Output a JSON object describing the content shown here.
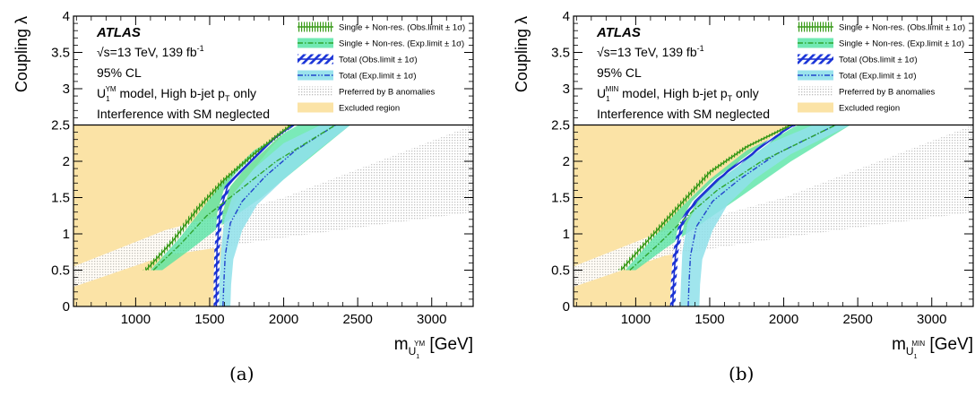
{
  "chart_data": [
    {
      "type": "area",
      "label": "ATLAS",
      "energy_text": "√s=13 TeV, 139 fb",
      "lumi_sup": "-1",
      "cl_text": "95% CL",
      "model_pre": "U",
      "model_sub": "1",
      "model_sup": "YM",
      "model_post": " model, High b-jet p",
      "model_post_sub": "T",
      "model_tail": " only",
      "interference_text": "Interference with SM neglected",
      "ylabel": "Coupling λ",
      "xlabel_pre": "m",
      "xlabel_sub": "U",
      "xlabel_subsub": "1",
      "xlabel_sup": "YM",
      "xlabel_unit": " [GeV]",
      "caption": "(a)",
      "xlim": [
        580,
        3280
      ],
      "ylim": [
        0,
        4
      ],
      "xticks": [
        1000,
        1500,
        2000,
        2500,
        3000
      ],
      "yticks": [
        0,
        0.5,
        1,
        1.5,
        2,
        2.5,
        3,
        3.5,
        4
      ],
      "xtick_labels": [
        "1000",
        "1500",
        "2000",
        "2500",
        "3000"
      ],
      "ytick_labels": [
        "0",
        "0.5",
        "1",
        "1.5",
        "2",
        "2.5",
        "3",
        "3.5",
        "4"
      ],
      "legend": [
        "Single + Non-res. (Obs.limit ± 1σ)",
        "Single + Non-res. (Exp.limit ± 1σ)",
        "Total (Obs.limit ± 1σ)",
        "Total (Exp.limit ± 1σ)",
        "Preferred by B anomalies",
        "Excluded region"
      ],
      "colors": {
        "excluded": "#fbe3a6",
        "anomalies": "#c8c8c8",
        "single_obs": "#3a9a1a",
        "single_band": "#4ee3a0",
        "single_exp": "#2fa52f",
        "total_band": "#8fe0ea",
        "total_obs": "#1a2fd0",
        "total_exp": "#2244cc"
      },
      "series": {
        "excluded": {
          "x": [
            580,
            1550,
            1555,
            1580,
            1640,
            1780,
            1920,
            2060
          ],
          "y": [
            0,
            0,
            0.3,
            0.8,
            1.3,
            1.85,
            2.2,
            2.5
          ]
        },
        "anomalies": {
          "x": [
            580,
            1200,
            2000,
            3280,
            3280,
            2000,
            1200,
            580
          ],
          "y": [
            0.55,
            1.05,
            1.5,
            2.5,
            1.3,
            0.95,
            0.7,
            0.27
          ]
        },
        "single_obs": {
          "x": [
            1070,
            1250,
            1420,
            1600,
            1800,
            2050
          ],
          "y": [
            0.5,
            0.9,
            1.35,
            1.75,
            2.1,
            2.5
          ]
        },
        "single_exp": {
          "x": [
            1120,
            1300,
            1480,
            1700,
            1950,
            2350
          ],
          "y": [
            0.5,
            0.85,
            1.25,
            1.6,
            2.0,
            2.5
          ]
        },
        "single_band_upper": {
          "x": [
            1100,
            1300,
            1450,
            1600,
            1800,
            2100
          ],
          "y": [
            0.5,
            0.95,
            1.35,
            1.75,
            2.15,
            2.5
          ]
        },
        "single_band_lower": {
          "x": [
            1180,
            1380,
            1600,
            1850,
            2150,
            2450
          ],
          "y": [
            0.5,
            0.8,
            1.15,
            1.5,
            2.0,
            2.5
          ]
        },
        "total_obs": {
          "x": [
            1545,
            1545,
            1550,
            1570,
            1620,
            1700,
            1800,
            1930,
            2060
          ],
          "y": [
            0,
            0.3,
            0.8,
            1.3,
            1.65,
            1.85,
            2.05,
            2.3,
            2.5
          ]
        },
        "total_exp": {
          "x": [
            1590,
            1595,
            1605,
            1640,
            1720,
            1880,
            2080,
            2350
          ],
          "y": [
            0,
            0.3,
            0.7,
            1.15,
            1.45,
            1.8,
            2.15,
            2.5
          ]
        },
        "total_band_upper": {
          "x": [
            1565,
            1565,
            1575,
            1600,
            1660,
            1800,
            2000,
            2250
          ],
          "y": [
            0,
            0.3,
            0.75,
            1.2,
            1.55,
            1.9,
            2.25,
            2.5
          ]
        },
        "total_band_lower": {
          "x": [
            1640,
            1645,
            1660,
            1720,
            1820,
            2000,
            2200,
            2450
          ],
          "y": [
            0,
            0.3,
            0.65,
            1.05,
            1.4,
            1.75,
            2.1,
            2.5
          ]
        }
      }
    },
    {
      "type": "area",
      "label": "ATLAS",
      "energy_text": "√s=13 TeV, 139 fb",
      "lumi_sup": "-1",
      "cl_text": "95% CL",
      "model_pre": "U",
      "model_sub": "1",
      "model_sup": "MIN",
      "model_post": " model, High b-jet p",
      "model_post_sub": "T",
      "model_tail": " only",
      "interference_text": "Interference with SM neglected",
      "ylabel": "Coupling λ",
      "xlabel_pre": "m",
      "xlabel_sub": "U",
      "xlabel_subsub": "1",
      "xlabel_sup": "MIN",
      "xlabel_unit": " [GeV]",
      "caption": "(b)",
      "xlim": [
        580,
        3280
      ],
      "ylim": [
        0,
        4
      ],
      "xticks": [
        1000,
        1500,
        2000,
        2500,
        3000
      ],
      "yticks": [
        0,
        0.5,
        1,
        1.5,
        2,
        2.5,
        3,
        3.5,
        4
      ],
      "xtick_labels": [
        "1000",
        "1500",
        "2000",
        "2500",
        "3000"
      ],
      "ytick_labels": [
        "0",
        "0.5",
        "1",
        "1.5",
        "2",
        "2.5",
        "3",
        "3.5",
        "4"
      ],
      "legend": [
        "Single + Non-res. (Obs.limit ± 1σ)",
        "Single + Non-res. (Exp.limit ± 1σ)",
        "Total (Obs.limit ± 1σ)",
        "Total (Exp.limit ± 1σ)",
        "Preferred by B anomalies",
        "Excluded region"
      ],
      "colors": {
        "excluded": "#fbe3a6",
        "anomalies": "#c8c8c8",
        "single_obs": "#3a9a1a",
        "single_band": "#4ee3a0",
        "single_exp": "#2fa52f",
        "total_band": "#8fe0ea",
        "total_obs": "#1a2fd0",
        "total_exp": "#2244cc"
      },
      "series": {
        "excluded": {
          "x": [
            580,
            1250,
            1255,
            1290,
            1360,
            1500,
            1700,
            1900,
            2050
          ],
          "y": [
            0,
            0,
            0.3,
            0.8,
            1.2,
            1.55,
            1.95,
            2.3,
            2.5
          ]
        },
        "anomalies": {
          "x": [
            580,
            1200,
            2000,
            3280,
            3280,
            2000,
            1200,
            580
          ],
          "y": [
            0.55,
            1.05,
            1.5,
            2.5,
            1.3,
            0.95,
            0.7,
            0.27
          ]
        },
        "single_obs": {
          "x": [
            900,
            1100,
            1300,
            1500,
            1750,
            2050
          ],
          "y": [
            0.5,
            0.95,
            1.4,
            1.85,
            2.2,
            2.5
          ]
        },
        "single_exp": {
          "x": [
            960,
            1150,
            1350,
            1550,
            1850,
            2350
          ],
          "y": [
            0.5,
            0.85,
            1.25,
            1.6,
            2.0,
            2.5
          ]
        },
        "single_band_upper": {
          "x": [
            930,
            1120,
            1300,
            1500,
            1750,
            2100
          ],
          "y": [
            0.5,
            0.95,
            1.35,
            1.75,
            2.15,
            2.5
          ]
        },
        "single_band_lower": {
          "x": [
            1000,
            1200,
            1450,
            1700,
            2050,
            2450
          ],
          "y": [
            0.5,
            0.8,
            1.15,
            1.5,
            2.0,
            2.5
          ]
        },
        "total_obs": {
          "x": [
            1250,
            1255,
            1270,
            1310,
            1400,
            1550,
            1750,
            1950,
            2070
          ],
          "y": [
            0,
            0.3,
            0.75,
            1.15,
            1.45,
            1.75,
            2.05,
            2.35,
            2.5
          ]
        },
        "total_exp": {
          "x": [
            1355,
            1360,
            1370,
            1410,
            1520,
            1700,
            1950,
            2350
          ],
          "y": [
            0,
            0.3,
            0.7,
            1.1,
            1.45,
            1.75,
            2.1,
            2.5
          ]
        },
        "total_band_upper": {
          "x": [
            1300,
            1305,
            1315,
            1350,
            1440,
            1600,
            1850,
            2200
          ],
          "y": [
            0,
            0.3,
            0.75,
            1.15,
            1.5,
            1.8,
            2.2,
            2.5
          ]
        },
        "total_band_lower": {
          "x": [
            1430,
            1435,
            1450,
            1520,
            1620,
            1800,
            2050,
            2450
          ],
          "y": [
            0,
            0.3,
            0.65,
            1.05,
            1.4,
            1.75,
            2.1,
            2.5
          ]
        }
      }
    }
  ]
}
